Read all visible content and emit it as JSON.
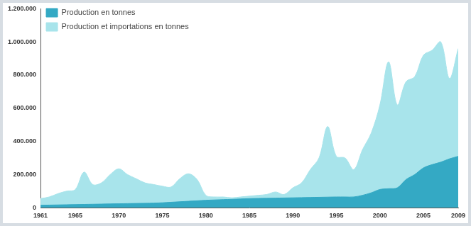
{
  "chart_data": {
    "type": "area",
    "x": [
      1961,
      1962,
      1963,
      1964,
      1965,
      1966,
      1967,
      1968,
      1969,
      1970,
      1971,
      1972,
      1973,
      1974,
      1975,
      1976,
      1977,
      1978,
      1979,
      1980,
      1981,
      1982,
      1983,
      1984,
      1985,
      1986,
      1987,
      1988,
      1989,
      1990,
      1991,
      1992,
      1993,
      1994,
      1995,
      1996,
      1997,
      1998,
      1999,
      2000,
      2001,
      2002,
      2003,
      2004,
      2005,
      2006,
      2007,
      2008,
      2009
    ],
    "series": [
      {
        "name": "Production et importations en tonnes",
        "color": "#a8e4eb",
        "values": [
          55000,
          65000,
          85000,
          100000,
          110000,
          215000,
          140000,
          150000,
          200000,
          235000,
          200000,
          175000,
          150000,
          140000,
          130000,
          125000,
          175000,
          205000,
          170000,
          75000,
          65000,
          65000,
          60000,
          65000,
          70000,
          75000,
          80000,
          95000,
          80000,
          120000,
          150000,
          230000,
          300000,
          490000,
          310000,
          300000,
          230000,
          350000,
          450000,
          620000,
          880000,
          620000,
          760000,
          790000,
          920000,
          950000,
          1000000,
          780000,
          960000
        ]
      },
      {
        "name": "Production en tonnes",
        "color": "#34a9c4",
        "values": [
          15000,
          16000,
          17000,
          18000,
          19000,
          20000,
          21000,
          22000,
          23000,
          24000,
          25000,
          26000,
          27000,
          28000,
          30000,
          33000,
          36000,
          39000,
          42000,
          45000,
          47000,
          49000,
          51000,
          53000,
          55000,
          56000,
          57000,
          58000,
          59000,
          60000,
          61000,
          62000,
          63000,
          64000,
          65000,
          65000,
          65000,
          75000,
          90000,
          110000,
          115000,
          120000,
          170000,
          200000,
          240000,
          260000,
          275000,
          295000,
          310000
        ]
      }
    ],
    "xlim": [
      1961,
      2009
    ],
    "xticks": [
      1961,
      1965,
      1970,
      1975,
      1980,
      1985,
      1990,
      1995,
      2000,
      2005,
      2009
    ],
    "ylim": [
      0,
      1200000
    ],
    "yticks": [
      0,
      {
        "value": 200000,
        "label": "200.000"
      },
      {
        "value": 400000,
        "label": "400.000"
      },
      {
        "value": 600000,
        "label": "600.000"
      },
      {
        "value": 800000,
        "label": "800.000"
      },
      {
        "value": 1000000,
        "label": "1.000.000"
      },
      {
        "value": 1200000,
        "label": "1.200.000"
      }
    ],
    "grid": false,
    "legend": "upper left",
    "stacked": false
  }
}
